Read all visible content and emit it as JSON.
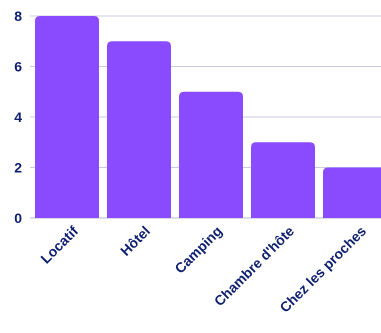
{
  "chart_data": {
    "type": "bar",
    "title": "",
    "xlabel": "",
    "ylabel": "",
    "categories": [
      "Locatif",
      "Hôtel",
      "Camping",
      "Chambre d'hôte",
      "Chez les proches"
    ],
    "values": [
      8,
      7,
      5,
      3,
      2
    ],
    "ylim": [
      0,
      8
    ],
    "yticks": [
      0,
      2,
      4,
      6,
      8
    ],
    "grid": true,
    "colors": {
      "bar": "#8a4bff",
      "text": "#0d1f6e",
      "grid": "#c9cbe0"
    }
  }
}
